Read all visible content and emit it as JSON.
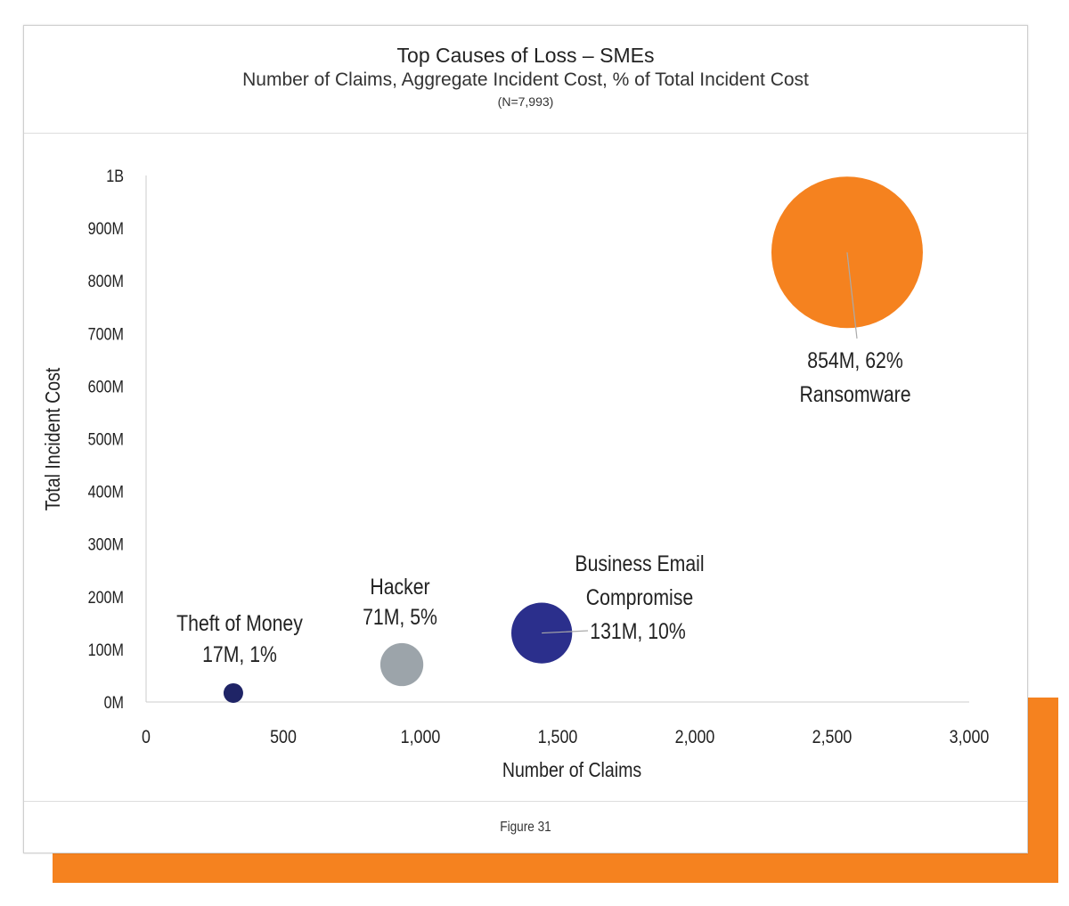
{
  "header": {
    "title": "Top Causes of Loss – SMEs",
    "subtitle": "Number of Claims, Aggregate Incident Cost, % of Total Incident Cost",
    "sample": "(N=7,993)"
  },
  "footer": {
    "caption": "Figure 31"
  },
  "colors": {
    "accent": "#f5821f",
    "ransomware": "#f5821f",
    "bec": "#2b2f8c",
    "hacker": "#9ca4aa",
    "theft": "#1f2466"
  },
  "chart_data": {
    "type": "scatter",
    "subtype": "bubble",
    "title": "Top Causes of Loss – SMEs",
    "xlabel": "Number of Claims",
    "ylabel": "Total Incident Cost",
    "xlim": [
      0,
      3000
    ],
    "ylim": [
      0,
      1000
    ],
    "x_ticks": [
      0,
      500,
      1000,
      1500,
      2000,
      2500,
      3000
    ],
    "x_tick_labels": [
      "0",
      "500",
      "1,000",
      "1,500",
      "2,000",
      "2,500",
      "3,000"
    ],
    "y_ticks": [
      0,
      100,
      200,
      300,
      400,
      500,
      600,
      700,
      800,
      900,
      1000
    ],
    "y_tick_labels": [
      "0M",
      "100M",
      "200M",
      "300M",
      "400M",
      "500M",
      "600M",
      "700M",
      "800M",
      "900M",
      "1B"
    ],
    "grid": false,
    "points": [
      {
        "name": "Theft of Money",
        "x": 318,
        "y": 17,
        "pct": 1,
        "color": "#1f2466",
        "label": [
          "Theft of Money",
          "17M, 1%"
        ]
      },
      {
        "name": "Hacker",
        "x": 932,
        "y": 71,
        "pct": 5,
        "color": "#9ca4aa",
        "label": [
          "Hacker",
          "71M, 5%"
        ]
      },
      {
        "name": "Business Email Compromise",
        "x": 1442,
        "y": 131,
        "pct": 10,
        "color": "#2b2f8c",
        "label": [
          "Business Email",
          "Compromise",
          "131M, 10%"
        ]
      },
      {
        "name": "Ransomware",
        "x": 2555,
        "y": 854,
        "pct": 62,
        "color": "#f5821f",
        "label": [
          "854M, 62%",
          "Ransomware"
        ]
      }
    ]
  }
}
